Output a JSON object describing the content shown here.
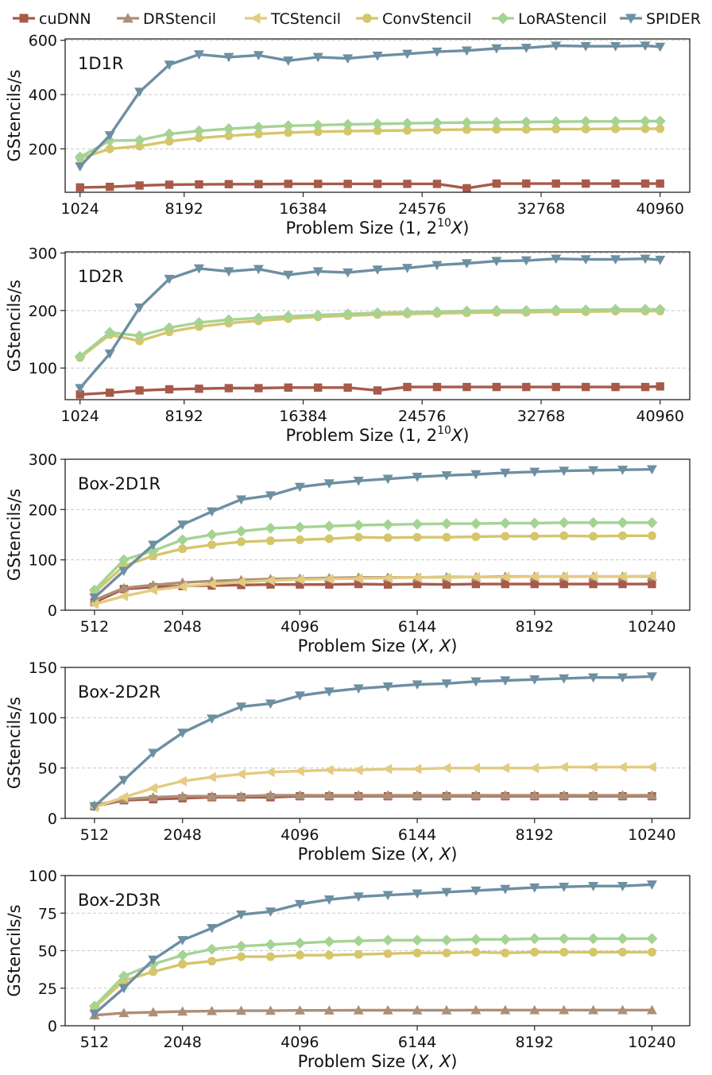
{
  "legend": [
    {
      "name": "cuDNN",
      "color": "#a85a4a",
      "marker": "square"
    },
    {
      "name": "DRStencil",
      "color": "#ad8f77",
      "marker": "triangle-up"
    },
    {
      "name": "TCStencil",
      "color": "#e3cb80",
      "marker": "triangle-left"
    },
    {
      "name": "ConvStencil",
      "color": "#d5c66a",
      "marker": "circle"
    },
    {
      "name": "LoRAStencil",
      "color": "#a5d394",
      "marker": "diamond"
    },
    {
      "name": "SPIDER",
      "color": "#6d8fa2",
      "marker": "triangle-down"
    }
  ],
  "chart_data": [
    {
      "type": "line",
      "title": "1D1R",
      "xlabel": "Problem Size (1, 2^10 X)",
      "xlabel_parts": [
        "Problem Size (1, 2",
        "10",
        "X",
        ")"
      ],
      "ylabel": "GStencils/s",
      "xlim": [
        0,
        43000
      ],
      "ylim": [
        40,
        605
      ],
      "xticks": [
        1024,
        8192,
        16384,
        24576,
        32768,
        40960
      ],
      "xtick_labels": [
        "1024",
        "8192",
        "16384",
        "24576",
        "32768",
        "40960"
      ],
      "yticks": [
        200,
        400,
        600
      ],
      "ytick_labels": [
        "200",
        "400",
        "600"
      ],
      "x": [
        1024,
        3072,
        5120,
        7168,
        9216,
        11264,
        13312,
        15360,
        17408,
        19456,
        21504,
        23552,
        25600,
        27648,
        29696,
        31744,
        33792,
        35840,
        37888,
        39936,
        40960
      ],
      "series": [
        {
          "name": "cuDNN",
          "values": [
            58,
            60,
            65,
            68,
            69,
            70,
            70,
            71,
            71,
            71,
            71,
            71,
            71,
            55,
            72,
            72,
            72,
            72,
            72,
            72,
            72
          ]
        },
        {
          "name": "ConvStencil",
          "values": [
            165,
            200,
            210,
            228,
            240,
            248,
            255,
            260,
            263,
            265,
            267,
            268,
            270,
            271,
            272,
            272,
            273,
            273,
            274,
            274,
            274
          ]
        },
        {
          "name": "LoRAStencil",
          "values": [
            170,
            230,
            232,
            255,
            266,
            274,
            280,
            285,
            287,
            290,
            292,
            294,
            296,
            297,
            298,
            299,
            300,
            301,
            301,
            302,
            302
          ]
        },
        {
          "name": "SPIDER",
          "values": [
            135,
            250,
            410,
            510,
            548,
            538,
            545,
            525,
            538,
            533,
            543,
            550,
            558,
            562,
            570,
            572,
            580,
            578,
            578,
            580,
            576
          ]
        }
      ]
    },
    {
      "type": "line",
      "title": "1D2R",
      "xlabel": "Problem Size (1, 2^10 X)",
      "xlabel_parts": [
        "Problem Size (1, 2",
        "10",
        "X",
        ")"
      ],
      "ylabel": "GStencils/s",
      "xlim": [
        0,
        43000
      ],
      "ylim": [
        45,
        302
      ],
      "xticks": [
        1024,
        8192,
        16384,
        24576,
        32768,
        40960
      ],
      "xtick_labels": [
        "1024",
        "8192",
        "16384",
        "24576",
        "32768",
        "40960"
      ],
      "yticks": [
        100,
        200,
        300
      ],
      "ytick_labels": [
        "100",
        "200",
        "300"
      ],
      "x": [
        1024,
        3072,
        5120,
        7168,
        9216,
        11264,
        13312,
        15360,
        17408,
        19456,
        21504,
        23552,
        25600,
        27648,
        29696,
        31744,
        33792,
        35840,
        37888,
        39936,
        40960
      ],
      "series": [
        {
          "name": "cuDNN",
          "values": [
            54,
            57,
            61,
            63,
            64,
            65,
            65,
            66,
            66,
            66,
            61,
            67,
            67,
            67,
            67,
            67,
            67,
            67,
            67,
            67,
            68
          ]
        },
        {
          "name": "ConvStencil",
          "values": [
            118,
            158,
            147,
            163,
            172,
            178,
            182,
            186,
            189,
            191,
            193,
            194,
            195,
            196,
            197,
            197,
            198,
            198,
            199,
            199,
            199
          ]
        },
        {
          "name": "LoRAStencil",
          "values": [
            120,
            162,
            156,
            170,
            179,
            184,
            187,
            190,
            192,
            194,
            196,
            197,
            198,
            199,
            200,
            200,
            201,
            201,
            202,
            202,
            202
          ]
        },
        {
          "name": "SPIDER",
          "values": [
            65,
            125,
            205,
            255,
            273,
            268,
            272,
            262,
            268,
            266,
            271,
            274,
            279,
            282,
            286,
            287,
            290,
            289,
            289,
            290,
            288
          ]
        }
      ]
    },
    {
      "type": "line",
      "title": "Box-2D1R",
      "xlabel": "Problem Size (X, X)",
      "xlabel_parts": [
        "Problem Size (",
        "X",
        ", ",
        "X",
        ")"
      ],
      "ylabel": "GStencils/s",
      "xlim": [
        0,
        10900
      ],
      "ylim": [
        0,
        300
      ],
      "xticks": [
        512,
        2048,
        4096,
        6144,
        8192,
        10240
      ],
      "xtick_labels": [
        "512",
        "2048",
        "4096",
        "6144",
        "8192",
        "10240"
      ],
      "yticks": [
        0,
        100,
        200,
        300
      ],
      "ytick_labels": [
        "0",
        "100",
        "200",
        "300"
      ],
      "x": [
        512,
        1024,
        1536,
        2048,
        2560,
        3072,
        3584,
        4096,
        4608,
        5120,
        5632,
        6144,
        6656,
        7168,
        7680,
        8192,
        8704,
        9216,
        9728,
        10240
      ],
      "series": [
        {
          "name": "cuDNN",
          "values": [
            16,
            42,
            46,
            48,
            49,
            50,
            51,
            51,
            51,
            52,
            51,
            52,
            51,
            52,
            52,
            52,
            52,
            52,
            52,
            52
          ]
        },
        {
          "name": "DRStencil",
          "values": [
            20,
            44,
            50,
            55,
            58,
            60,
            62,
            63,
            64,
            65,
            65,
            65,
            66,
            66,
            67,
            67,
            67,
            67,
            67,
            67
          ]
        },
        {
          "name": "TCStencil",
          "values": [
            12,
            28,
            40,
            47,
            52,
            56,
            59,
            61,
            62,
            63,
            64,
            65,
            65,
            66,
            66,
            67,
            67,
            67,
            67,
            68
          ]
        },
        {
          "name": "ConvStencil",
          "values": [
            35,
            88,
            108,
            122,
            130,
            136,
            138,
            140,
            142,
            145,
            144,
            145,
            145,
            146,
            147,
            147,
            148,
            147,
            148,
            148
          ]
        },
        {
          "name": "LoRAStencil",
          "values": [
            40,
            100,
            118,
            140,
            150,
            157,
            163,
            165,
            167,
            169,
            170,
            171,
            172,
            172,
            173,
            173,
            174,
            174,
            174,
            174
          ]
        },
        {
          "name": "SPIDER",
          "values": [
            25,
            78,
            130,
            170,
            196,
            220,
            228,
            245,
            252,
            257,
            261,
            265,
            268,
            270,
            273,
            275,
            277,
            278,
            279,
            280
          ]
        }
      ]
    },
    {
      "type": "line",
      "title": "Box-2D2R",
      "xlabel": "Problem Size (X, X)",
      "xlabel_parts": [
        "Problem Size (",
        "X",
        ", ",
        "X",
        ")"
      ],
      "ylabel": "GStencils/s",
      "xlim": [
        0,
        10900
      ],
      "ylim": [
        0,
        150
      ],
      "xticks": [
        512,
        2048,
        4096,
        6144,
        8192,
        10240
      ],
      "xtick_labels": [
        "512",
        "2048",
        "4096",
        "6144",
        "8192",
        "10240"
      ],
      "yticks": [
        0,
        50,
        100,
        150
      ],
      "ytick_labels": [
        "0",
        "50",
        "100",
        "150"
      ],
      "x": [
        512,
        1024,
        1536,
        2048,
        2560,
        3072,
        3584,
        4096,
        4608,
        5120,
        5632,
        6144,
        6656,
        7168,
        7680,
        8192,
        8704,
        9216,
        9728,
        10240
      ],
      "series": [
        {
          "name": "cuDNN",
          "values": [
            12,
            18,
            19,
            20,
            21,
            21,
            21,
            22,
            22,
            22,
            22,
            22,
            22,
            22,
            22,
            22,
            22,
            22,
            22,
            22
          ]
        },
        {
          "name": "DRStencil",
          "values": [
            13,
            19,
            21,
            22,
            22,
            22,
            23,
            23,
            23,
            23,
            23,
            23,
            23,
            23,
            23,
            23,
            23,
            23,
            23,
            23
          ]
        },
        {
          "name": "TCStencil",
          "values": [
            11,
            21,
            30,
            37,
            41,
            44,
            46,
            47,
            48,
            48,
            49,
            49,
            50,
            50,
            50,
            50,
            51,
            51,
            51,
            51
          ]
        },
        {
          "name": "SPIDER",
          "values": [
            12,
            38,
            65,
            85,
            99,
            111,
            114,
            122,
            126,
            129,
            131,
            133,
            134,
            136,
            137,
            138,
            139,
            140,
            140,
            141
          ]
        }
      ]
    },
    {
      "type": "line",
      "title": "Box-2D3R",
      "xlabel": "Problem Size (X, X)",
      "xlabel_parts": [
        "Problem Size (",
        "X",
        ", ",
        "X",
        ")"
      ],
      "ylabel": "GStencils/s",
      "xlim": [
        0,
        10900
      ],
      "ylim": [
        0,
        100
      ],
      "xticks": [
        512,
        2048,
        4096,
        6144,
        8192,
        10240
      ],
      "xtick_labels": [
        "512",
        "2048",
        "4096",
        "6144",
        "8192",
        "10240"
      ],
      "yticks": [
        0,
        25,
        50,
        75,
        100
      ],
      "ytick_labels": [
        "0",
        "25",
        "50",
        "75",
        "100"
      ],
      "x": [
        512,
        1024,
        1536,
        2048,
        2560,
        3072,
        3584,
        4096,
        4608,
        5120,
        5632,
        6144,
        6656,
        7168,
        7680,
        8192,
        8704,
        9216,
        9728,
        10240
      ],
      "series": [
        {
          "name": "DRStencil",
          "values": [
            7,
            8.5,
            9,
            9.5,
            9.8,
            10,
            10,
            10.2,
            10.2,
            10.3,
            10.3,
            10.3,
            10.3,
            10.4,
            10.4,
            10.4,
            10.4,
            10.4,
            10.4,
            10.4
          ]
        },
        {
          "name": "ConvStencil",
          "values": [
            12,
            30,
            36,
            41,
            43,
            46,
            46,
            47,
            47,
            47.5,
            48,
            48.5,
            48.5,
            49,
            48.5,
            49,
            49,
            49,
            49,
            49
          ]
        },
        {
          "name": "LoRAStencil",
          "values": [
            13,
            33,
            41,
            47,
            51,
            53,
            54,
            55,
            56,
            56.5,
            57,
            57,
            57,
            57.5,
            57.5,
            58,
            58,
            58,
            58,
            58
          ]
        },
        {
          "name": "SPIDER",
          "values": [
            8,
            25,
            44,
            57,
            65,
            74,
            76,
            81,
            84,
            86,
            87,
            88,
            89,
            90,
            91,
            92,
            92.5,
            93,
            93,
            94
          ]
        }
      ]
    }
  ]
}
